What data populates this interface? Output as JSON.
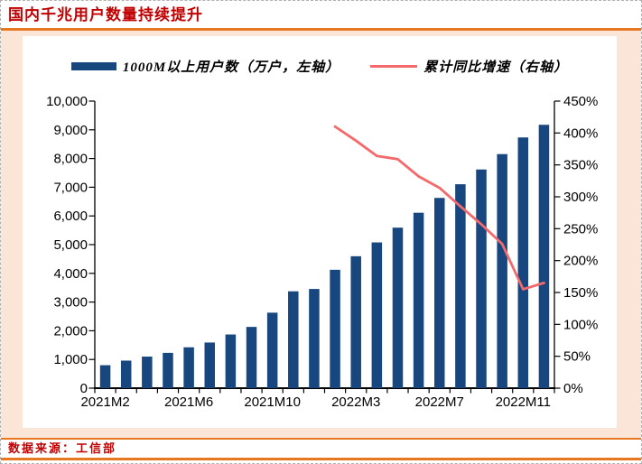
{
  "header": {
    "title": "国内千兆用户数量持续提升"
  },
  "footer": {
    "source": "数据来源：工信部"
  },
  "colors": {
    "bar": "#17477e",
    "line": "#f4696b",
    "accent_orange": "#e87722",
    "peach_background": "#fbe5d6",
    "title_red": "#c00000"
  },
  "legend": {
    "items": [
      {
        "label": "1000M以上用户数（万户，左轴）",
        "swatch": "bar-swatch",
        "color": "#17477e"
      },
      {
        "label": "累计同比增速（右轴）",
        "swatch": "line-swatch",
        "color": "#f4696b"
      }
    ]
  },
  "chart_data": {
    "type": "bar",
    "title": "国内千兆用户数量持续提升",
    "categories": [
      "2021M2",
      "2021M3",
      "2021M4",
      "2021M5",
      "2021M6",
      "2021M7",
      "2021M8",
      "2021M9",
      "2021M10",
      "2021M11",
      "2021M12",
      "2022M2",
      "2022M3",
      "2022M4",
      "2022M5",
      "2022M6",
      "2022M7",
      "2022M8",
      "2022M9",
      "2022M10",
      "2022M11",
      "2022M12"
    ],
    "series": [
      {
        "name": "1000M以上用户数（万户，左轴）",
        "type": "bar",
        "axis": "left",
        "values": [
          800,
          960,
          1100,
          1230,
          1424,
          1590,
          1870,
          2134,
          2630,
          3374,
          3456,
          4124,
          4596,
          5077,
          5591,
          6111,
          6627,
          7104,
          7618,
          8154,
          8734,
          9175
        ]
      },
      {
        "name": "累计同比增速（右轴）",
        "type": "line",
        "axis": "right",
        "values": [
          null,
          null,
          null,
          null,
          null,
          null,
          null,
          null,
          null,
          null,
          null,
          410,
          388,
          364,
          359,
          332,
          314,
          285,
          257,
          226,
          155,
          165
        ]
      }
    ],
    "left_axis": {
      "min": 0,
      "max": 10000,
      "step": 1000
    },
    "right_axis": {
      "min": 0,
      "max": 450,
      "step": 50,
      "suffix": "%"
    },
    "x_label_indices": [
      0,
      4,
      8,
      12,
      16,
      20
    ],
    "x_tick_labels": [
      "2021M2",
      "2021M6",
      "2021M10",
      "2022M3",
      "2022M7",
      "2022M11"
    ],
    "grid": false,
    "legend_position": "top"
  }
}
